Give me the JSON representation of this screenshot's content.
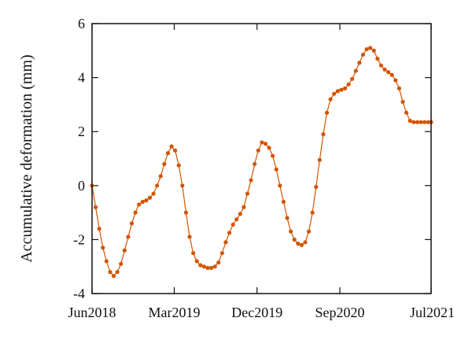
{
  "chart_data": {
    "type": "line",
    "title": "",
    "xlabel": "",
    "ylabel": "Accumulative deformation (mm)",
    "xlim": [
      "2018-06",
      "2021-07"
    ],
    "ylim": [
      -4,
      6
    ],
    "x_ticks": [
      "Jun2018",
      "Mar2019",
      "Dec2019",
      "Sep2020",
      "Jul2021"
    ],
    "y_ticks": [
      "6",
      "4",
      "2",
      "0",
      "-2",
      "-4"
    ],
    "grid": false,
    "legend": "none",
    "marker": "circle",
    "series": [
      {
        "color": "#D35400",
        "x": [
          "2018-06-01",
          "2018-06-13",
          "2018-06-25",
          "2018-07-07",
          "2018-07-19",
          "2018-07-31",
          "2018-08-12",
          "2018-08-24",
          "2018-09-05",
          "2018-09-17",
          "2018-09-29",
          "2018-10-11",
          "2018-10-23",
          "2018-11-04",
          "2018-11-16",
          "2018-11-28",
          "2018-12-10",
          "2018-12-22",
          "2019-01-03",
          "2019-01-15",
          "2019-01-27",
          "2019-02-08",
          "2019-02-20",
          "2019-03-04",
          "2019-03-16",
          "2019-03-28",
          "2019-04-09",
          "2019-04-21",
          "2019-05-03",
          "2019-05-15",
          "2019-05-27",
          "2019-06-08",
          "2019-06-20",
          "2019-07-02",
          "2019-07-14",
          "2019-07-26",
          "2019-08-07",
          "2019-08-19",
          "2019-08-31",
          "2019-09-12",
          "2019-09-24",
          "2019-10-06",
          "2019-10-18",
          "2019-10-30",
          "2019-11-11",
          "2019-11-23",
          "2019-12-05",
          "2019-12-17",
          "2019-12-29",
          "2020-01-10",
          "2020-01-22",
          "2020-02-03",
          "2020-02-15",
          "2020-02-27",
          "2020-03-10",
          "2020-03-22",
          "2020-04-03",
          "2020-04-15",
          "2020-04-27",
          "2020-05-09",
          "2020-05-21",
          "2020-06-02",
          "2020-06-14",
          "2020-06-26",
          "2020-07-08",
          "2020-07-20",
          "2020-08-01",
          "2020-08-13",
          "2020-08-25",
          "2020-09-06",
          "2020-09-18",
          "2020-09-30",
          "2020-10-12",
          "2020-10-24",
          "2020-11-05",
          "2020-11-17",
          "2020-11-29",
          "2020-12-11",
          "2020-12-23",
          "2021-01-04",
          "2021-01-16",
          "2021-01-28",
          "2021-02-09",
          "2021-02-21",
          "2021-03-05",
          "2021-03-17",
          "2021-03-29",
          "2021-04-10",
          "2021-04-22",
          "2021-05-04",
          "2021-05-16",
          "2021-05-28",
          "2021-06-09",
          "2021-06-21",
          "2021-07-01"
        ],
        "y": [
          0,
          -0.8,
          -1.6,
          -2.3,
          -2.8,
          -3.2,
          -3.35,
          -3.2,
          -2.9,
          -2.4,
          -1.9,
          -1.4,
          -1.0,
          -0.7,
          -0.6,
          -0.55,
          -0.45,
          -0.3,
          0.0,
          0.35,
          0.8,
          1.2,
          1.45,
          1.3,
          0.75,
          0.0,
          -1.0,
          -1.9,
          -2.5,
          -2.8,
          -2.95,
          -3.0,
          -3.05,
          -3.05,
          -3.0,
          -2.85,
          -2.5,
          -2.1,
          -1.75,
          -1.45,
          -1.25,
          -1.05,
          -0.8,
          -0.3,
          0.2,
          0.8,
          1.3,
          1.6,
          1.55,
          1.4,
          1.1,
          0.6,
          0.0,
          -0.6,
          -1.2,
          -1.7,
          -2.0,
          -2.15,
          -2.2,
          -2.1,
          -1.7,
          -1.0,
          -0.05,
          0.95,
          1.9,
          2.7,
          3.2,
          3.4,
          3.5,
          3.55,
          3.6,
          3.75,
          3.95,
          4.25,
          4.55,
          4.85,
          5.05,
          5.1,
          5.0,
          4.7,
          4.45,
          4.3,
          4.2,
          4.1,
          3.9,
          3.6,
          3.1,
          2.7,
          2.4,
          2.35,
          2.35,
          2.35,
          2.35,
          2.35,
          2.35
        ]
      }
    ]
  }
}
